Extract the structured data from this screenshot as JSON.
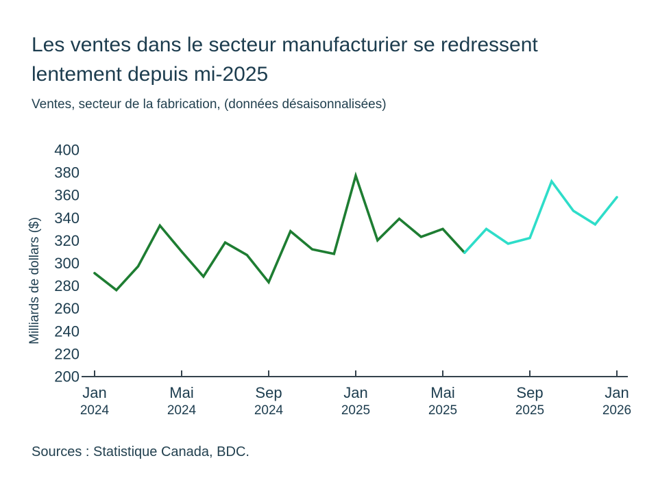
{
  "page": {
    "title": "Les ventes dans le secteur manufacturier se redressent lentement depuis mi-2025",
    "subtitle": "Ventes, secteur de la fabrication, (données désaisonnalisées)",
    "source": "Sources : Statistique Canada, BDC."
  },
  "colors": {
    "text": "#1c3c4e",
    "axis": "#34424c",
    "green_line": "#1e7d32",
    "turquoise_line": "#2eddc9",
    "background": "#ffffff"
  },
  "chart_data": {
    "type": "line",
    "title": "Les ventes dans le secteur manufacturier se redressent lentement depuis mi-2025",
    "subtitle": "Ventes, secteur de la fabrication, (données désaisonnalisées)",
    "xlabel": "",
    "ylabel": "Milliards de dollars ($)",
    "ylim": [
      200,
      400
    ],
    "ytick_step": 20,
    "yticks": [
      200,
      220,
      240,
      260,
      280,
      300,
      320,
      340,
      360,
      380,
      400
    ],
    "grid": false,
    "legend": "none",
    "x": [
      "2024-01",
      "2024-02",
      "2024-03",
      "2024-04",
      "2024-05",
      "2024-06",
      "2024-07",
      "2024-08",
      "2024-09",
      "2024-10",
      "2024-11",
      "2024-12",
      "2025-01",
      "2025-02",
      "2025-03",
      "2025-04",
      "2025-05",
      "2025-06",
      "2025-07",
      "2025-08",
      "2025-09",
      "2025-10",
      "2025-11",
      "2025-12",
      "2026-01"
    ],
    "values": [
      291,
      276,
      297,
      333,
      310,
      288,
      318,
      307,
      283,
      328,
      312,
      308,
      377,
      320,
      339,
      323,
      330,
      309,
      330,
      317,
      322,
      372,
      346,
      334,
      358
    ],
    "series": [
      {
        "name": "Ventes (segment vert, jusqu'à juin 2025)",
        "color_key": "green_line",
        "start_index": 0,
        "end_index": 17
      },
      {
        "name": "Ventes (segment turquoise, depuis juin 2025)",
        "color_key": "turquoise_line",
        "start_index": 17,
        "end_index": 24
      }
    ],
    "xticks": [
      {
        "index": 0,
        "month": "Jan",
        "year": "2024"
      },
      {
        "index": 4,
        "month": "Mai",
        "year": "2024"
      },
      {
        "index": 8,
        "month": "Sep",
        "year": "2024"
      },
      {
        "index": 12,
        "month": "Jan",
        "year": "2025"
      },
      {
        "index": 16,
        "month": "Mai",
        "year": "2025"
      },
      {
        "index": 20,
        "month": "Sep",
        "year": "2025"
      },
      {
        "index": 24,
        "month": "Jan",
        "year": "2026"
      }
    ]
  }
}
